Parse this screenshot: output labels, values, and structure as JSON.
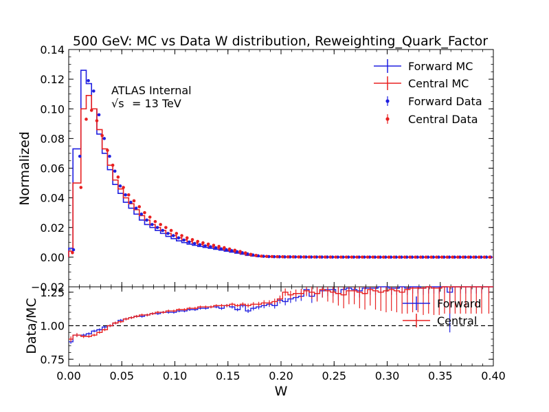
{
  "figure": {
    "title": "500 GeV: MC vs Data W distribution, Reweighting_Quark_Factor",
    "annotation_line1": "ATLAS Internal",
    "annotation_line2_symbol": "√s",
    "annotation_line2_text": "= 13 TeV"
  },
  "colors": {
    "forward": "#1f1fe0",
    "central": "#e82020",
    "reference": "#000000"
  },
  "chart_data": [
    {
      "type": "line",
      "panel": "top",
      "ylabel": "Normalized",
      "ylim": [
        -0.02,
        0.14
      ],
      "xlim": [
        0.0,
        0.4
      ],
      "yticks": [
        "−0.02",
        "0.00",
        "0.02",
        "0.04",
        "0.06",
        "0.08",
        "0.10",
        "0.12",
        "0.14"
      ],
      "legend_position": "top-right",
      "legend": [
        "Forward MC",
        "Central MC",
        "Forward Data",
        "Central Data"
      ],
      "bin_edges": [
        0.0,
        0.004,
        0.0115,
        0.0165,
        0.0215,
        0.0265,
        0.0315,
        0.0365,
        0.0415,
        0.0465,
        0.0515,
        0.0565,
        0.0615,
        0.0665,
        0.0715,
        0.0765,
        0.0815,
        0.0865,
        0.0915,
        0.0965,
        0.1015,
        0.1065,
        0.1115,
        0.1165,
        0.1215,
        0.1265,
        0.1315,
        0.1365,
        0.1415,
        0.1465,
        0.1515,
        0.1565,
        0.1615,
        0.1665,
        0.1715,
        0.1765,
        0.1815,
        0.1865,
        0.1915,
        0.1965,
        0.2015,
        0.2065,
        0.2115,
        0.2165,
        0.2215,
        0.2265,
        0.2315,
        0.2365,
        0.2415,
        0.2465,
        0.2515,
        0.2565,
        0.2615,
        0.2665,
        0.2715,
        0.2765,
        0.2815,
        0.2865,
        0.2915,
        0.2965,
        0.3015,
        0.3065,
        0.3115,
        0.3165,
        0.3215,
        0.3265,
        0.3315,
        0.3365,
        0.3415,
        0.3465,
        0.3515,
        0.3565,
        0.3615,
        0.3665,
        0.3715,
        0.3765,
        0.3815,
        0.3865,
        0.3915,
        0.4
      ],
      "series": [
        {
          "name": "Forward MC",
          "style": "step",
          "color": "#1f1fe0",
          "values": [
            0.006,
            0.073,
            0.126,
            0.117,
            0.1,
            0.083,
            0.07,
            0.059,
            0.049,
            0.043,
            0.037,
            0.033,
            0.029,
            0.025,
            0.022,
            0.02,
            0.018,
            0.016,
            0.014,
            0.0125,
            0.011,
            0.0098,
            0.0088,
            0.008,
            0.0072,
            0.0066,
            0.006,
            0.0053,
            0.0047,
            0.004,
            0.0034,
            0.0027,
            0.002,
            0.0012,
            0.0007,
            0.0004,
            0.0003,
            0.00025,
            0.0002,
            0.00018,
            0.00015,
            0.00013,
            0.00012,
            0.0001,
            0.0001,
            8e-05,
            7e-05,
            6e-05,
            5e-05,
            5e-05,
            4e-05,
            4e-05,
            3e-05,
            3e-05,
            3e-05,
            2e-05,
            2e-05,
            2e-05,
            2e-05,
            1e-05,
            1e-05,
            1e-05,
            1e-05,
            1e-05,
            1e-05,
            1e-05,
            1e-05,
            1e-05,
            1e-05,
            1e-05,
            1e-05,
            1e-05,
            1e-05,
            1e-05,
            1e-05,
            1e-05,
            1e-05,
            1e-05,
            1e-05
          ]
        },
        {
          "name": "Central MC",
          "style": "step",
          "color": "#e82020",
          "values": [
            0.004,
            0.05,
            0.1,
            0.109,
            0.1,
            0.086,
            0.073,
            0.062,
            0.052,
            0.046,
            0.04,
            0.036,
            0.032,
            0.028,
            0.025,
            0.022,
            0.02,
            0.018,
            0.016,
            0.0145,
            0.013,
            0.0117,
            0.0105,
            0.0095,
            0.0086,
            0.0078,
            0.007,
            0.0062,
            0.0055,
            0.0047,
            0.004,
            0.0032,
            0.0024,
            0.0015,
            0.0009,
            0.0005,
            0.0004,
            0.0003,
            0.00025,
            0.0002,
            0.00018,
            0.00016,
            0.00014,
            0.00012,
            0.00011,
            0.0001,
            9e-05,
            8e-05,
            7e-05,
            6e-05,
            5e-05,
            5e-05,
            4e-05,
            4e-05,
            3e-05,
            3e-05,
            3e-05,
            2e-05,
            2e-05,
            2e-05,
            2e-05,
            1e-05,
            1e-05,
            1e-05,
            1e-05,
            1e-05,
            1e-05,
            1e-05,
            1e-05,
            1e-05,
            1e-05,
            1e-05,
            1e-05,
            1e-05,
            1e-05,
            1e-05,
            1e-05,
            1e-05,
            1e-05
          ]
        },
        {
          "name": "Forward Data",
          "style": "points",
          "color": "#1f1fe0",
          "x": [
            0.0045,
            0.0105,
            0.0185,
            0.0235,
            0.0285,
            0.0335,
            0.0385,
            0.0435,
            0.0485,
            0.0535,
            0.0585,
            0.0635,
            0.0685,
            0.0735,
            0.0785,
            0.0835,
            0.0885,
            0.0935,
            0.0985,
            0.1035,
            0.1085,
            0.1135,
            0.1185,
            0.1235,
            0.1285,
            0.1335,
            0.1385,
            0.1435,
            0.1485,
            0.1535,
            0.1585,
            0.1635,
            0.1685,
            0.1735,
            0.1785,
            0.1835,
            0.1885,
            0.1935,
            0.1985,
            0.2035,
            0.2085,
            0.2135,
            0.2185,
            0.2235,
            0.2285,
            0.2335,
            0.2385,
            0.2435,
            0.2485,
            0.2535,
            0.2585,
            0.2635,
            0.2685,
            0.2735,
            0.2785,
            0.2835,
            0.2885,
            0.2935,
            0.2985,
            0.3035,
            0.3085,
            0.3135,
            0.3185,
            0.3235,
            0.3285,
            0.3335,
            0.3385,
            0.3435,
            0.3485,
            0.3535,
            0.3585,
            0.3635,
            0.3685,
            0.3735,
            0.3785,
            0.3835,
            0.3885,
            0.3935,
            0.3975
          ],
          "values": [
            0.005,
            0.068,
            0.119,
            0.112,
            0.096,
            0.08,
            0.068,
            0.058,
            0.048,
            0.042,
            0.037,
            0.033,
            0.029,
            0.025,
            0.022,
            0.02,
            0.018,
            0.016,
            0.0145,
            0.013,
            0.0115,
            0.0102,
            0.0092,
            0.0084,
            0.0076,
            0.007,
            0.0063,
            0.0056,
            0.005,
            0.0044,
            0.0037,
            0.003,
            0.0022,
            0.0015,
            0.0009,
            0.0006,
            0.0004,
            0.0003,
            0.00025,
            0.0002,
            0.00018,
            0.00016,
            0.00014,
            0.00012,
            0.0001,
            9e-05,
            8e-05,
            7e-05,
            6e-05,
            5e-05,
            5e-05,
            4e-05,
            4e-05,
            3e-05,
            3e-05,
            3e-05,
            2e-05,
            2e-05,
            2e-05,
            2e-05,
            1e-05,
            1e-05,
            1e-05,
            1e-05,
            1e-05,
            1e-05,
            1e-05,
            1e-05,
            1e-05,
            1e-05,
            1e-05,
            1e-05,
            1e-05,
            1e-05,
            1e-05,
            1e-05,
            1e-05,
            1e-05,
            1e-05
          ]
        },
        {
          "name": "Central Data",
          "style": "points",
          "color": "#e82020",
          "x": [
            0.0035,
            0.0115,
            0.0165,
            0.0215,
            0.0265,
            0.0315,
            0.0365,
            0.0415,
            0.0465,
            0.0515,
            0.0565,
            0.0615,
            0.0665,
            0.0715,
            0.0765,
            0.0815,
            0.0865,
            0.0915,
            0.0965,
            0.1015,
            0.1065,
            0.1115,
            0.1165,
            0.1215,
            0.1265,
            0.1315,
            0.1365,
            0.1415,
            0.1465,
            0.1515,
            0.1565,
            0.1615,
            0.1665,
            0.1715,
            0.1765,
            0.1815,
            0.1865,
            0.1915,
            0.1965,
            0.2015,
            0.2065,
            0.2115,
            0.2165,
            0.2215,
            0.2265,
            0.2315,
            0.2365,
            0.2415,
            0.2465,
            0.2515,
            0.2565,
            0.2615,
            0.2665,
            0.2715,
            0.2765,
            0.2815,
            0.2865,
            0.2915,
            0.2965,
            0.3015,
            0.3065,
            0.3115,
            0.3165,
            0.3215,
            0.3265,
            0.3315,
            0.3365,
            0.3415,
            0.3465,
            0.3515,
            0.3565,
            0.3615,
            0.3665,
            0.3715,
            0.3765,
            0.3815,
            0.3865,
            0.3915,
            0.3965
          ],
          "values": [
            0.003,
            0.047,
            0.093,
            0.099,
            0.092,
            0.082,
            0.072,
            0.062,
            0.054,
            0.047,
            0.042,
            0.038,
            0.034,
            0.03,
            0.027,
            0.024,
            0.022,
            0.02,
            0.018,
            0.016,
            0.0145,
            0.013,
            0.0118,
            0.0106,
            0.0097,
            0.0088,
            0.008,
            0.0072,
            0.0064,
            0.0055,
            0.0047,
            0.0038,
            0.0029,
            0.0019,
            0.0012,
            0.0007,
            0.0005,
            0.0004,
            0.0003,
            0.00025,
            0.0002,
            0.00018,
            0.00016,
            0.00014,
            0.00012,
            0.0001,
            9e-05,
            8e-05,
            7e-05,
            6e-05,
            5e-05,
            5e-05,
            4e-05,
            4e-05,
            3e-05,
            3e-05,
            3e-05,
            2e-05,
            2e-05,
            2e-05,
            2e-05,
            1e-05,
            1e-05,
            1e-05,
            1e-05,
            1e-05,
            1e-05,
            1e-05,
            1e-05,
            1e-05,
            1e-05,
            1e-05,
            1e-05,
            1e-05,
            1e-05,
            1e-05,
            1e-05,
            1e-05,
            1e-05
          ]
        }
      ]
    },
    {
      "type": "line",
      "panel": "ratio",
      "xlabel": "W",
      "ylabel": "Data/MC",
      "ylim": [
        0.7,
        1.29
      ],
      "xlim": [
        0.0,
        0.4
      ],
      "xticks": [
        "0.00",
        "0.05",
        "0.10",
        "0.15",
        "0.20",
        "0.25",
        "0.30",
        "0.35",
        "0.40"
      ],
      "yticks": [
        "0.75",
        "1.00",
        "1.25"
      ],
      "reference_line": 1.0,
      "legend_position": "right",
      "legend": [
        "Forward",
        "Central"
      ],
      "series": [
        {
          "name": "Forward",
          "color": "#1f1fe0",
          "values": [
            0.88,
            0.93,
            0.93,
            0.94,
            0.96,
            0.97,
            0.99,
            1.0,
            1.02,
            1.04,
            1.05,
            1.06,
            1.07,
            1.07,
            1.08,
            1.09,
            1.09,
            1.1,
            1.1,
            1.1,
            1.11,
            1.11,
            1.12,
            1.12,
            1.13,
            1.13,
            1.14,
            1.14,
            1.13,
            1.15,
            1.14,
            1.12,
            1.15,
            1.11,
            1.13,
            1.14,
            1.15,
            1.16,
            1.15,
            1.19,
            1.18,
            1.2,
            1.21,
            1.22,
            1.27,
            1.22,
            1.24,
            1.26,
            1.27,
            1.27,
            1.24,
            1.27,
            1.28,
            1.27,
            1.26,
            1.28,
            1.28,
            1.28,
            1.29,
            1.29,
            1.28,
            1.28,
            1.29,
            1.28,
            1.29,
            1.29,
            1.28,
            1.29,
            1.29,
            1.29,
            1.29,
            1.25,
            1.29,
            1.29,
            1.29,
            1.29,
            1.29,
            1.29,
            1.29
          ],
          "errors": [
            0.015,
            0.012,
            0.01,
            0.01,
            0.01,
            0.01,
            0.01,
            0.01,
            0.01,
            0.01,
            0.01,
            0.01,
            0.01,
            0.01,
            0.01,
            0.01,
            0.01,
            0.01,
            0.01,
            0.01,
            0.01,
            0.01,
            0.01,
            0.01,
            0.01,
            0.01,
            0.01,
            0.01,
            0.012,
            0.012,
            0.012,
            0.012,
            0.014,
            0.015,
            0.016,
            0.018,
            0.02,
            0.02,
            0.022,
            0.025,
            0.028,
            0.03,
            0.03,
            0.035,
            0.04,
            0.05,
            0.05,
            0.05,
            0.05,
            0.05,
            0.05,
            0.05,
            0.05,
            0.05,
            0.05,
            0.05,
            0.05,
            0.05,
            0.05,
            0.05,
            0.05,
            0.05,
            0.05,
            0.05,
            0.05,
            0.05,
            0.05,
            0.05,
            0.05,
            0.05,
            0.05,
            0.3,
            0.05,
            0.05,
            0.05,
            0.05,
            0.05,
            0.05,
            0.05
          ]
        },
        {
          "name": "Central",
          "color": "#e82020",
          "values": [
            0.9,
            0.93,
            0.92,
            0.92,
            0.93,
            0.95,
            0.97,
            1.0,
            1.02,
            1.03,
            1.05,
            1.06,
            1.07,
            1.08,
            1.08,
            1.09,
            1.1,
            1.1,
            1.11,
            1.11,
            1.12,
            1.12,
            1.13,
            1.13,
            1.14,
            1.14,
            1.14,
            1.15,
            1.15,
            1.15,
            1.16,
            1.15,
            1.16,
            1.15,
            1.16,
            1.16,
            1.17,
            1.17,
            1.18,
            1.2,
            1.25,
            1.23,
            1.24,
            1.24,
            1.26,
            1.25,
            1.24,
            1.27,
            1.26,
            1.25,
            1.24,
            1.23,
            1.26,
            1.26,
            1.25,
            1.24,
            1.27,
            1.26,
            1.25,
            1.26,
            1.27,
            1.26,
            1.25,
            1.27,
            1.28,
            1.28,
            1.28,
            1.29,
            1.28,
            1.28,
            1.29,
            1.29,
            1.29,
            1.29,
            1.29,
            1.29,
            1.29,
            1.29,
            1.29
          ],
          "errors": [
            0.02,
            0.015,
            0.012,
            0.01,
            0.01,
            0.01,
            0.01,
            0.01,
            0.01,
            0.01,
            0.01,
            0.01,
            0.01,
            0.01,
            0.01,
            0.01,
            0.01,
            0.01,
            0.01,
            0.01,
            0.01,
            0.01,
            0.01,
            0.01,
            0.01,
            0.01,
            0.01,
            0.01,
            0.012,
            0.012,
            0.012,
            0.012,
            0.014,
            0.015,
            0.016,
            0.018,
            0.02,
            0.02,
            0.022,
            0.025,
            0.028,
            0.03,
            0.03,
            0.035,
            0.04,
            0.05,
            0.06,
            0.06,
            0.08,
            0.08,
            0.09,
            0.1,
            0.1,
            0.1,
            0.12,
            0.12,
            0.12,
            0.14,
            0.14,
            0.16,
            0.16,
            0.16,
            0.16,
            0.18,
            0.18,
            0.18,
            0.2,
            0.2,
            0.2,
            0.2,
            0.2,
            0.2,
            0.2,
            0.2,
            0.2,
            0.2,
            0.2,
            0.2,
            0.2
          ]
        }
      ]
    }
  ]
}
